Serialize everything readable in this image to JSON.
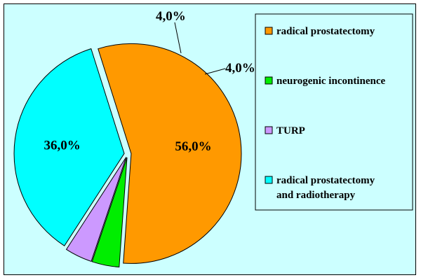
{
  "chart_data": {
    "type": "pie",
    "categories": [
      "radical prostatectomy",
      "neurogenic incontinence",
      "TURP",
      "radical prostatectomy and radiotherapy"
    ],
    "values": [
      56.0,
      4.0,
      4.0,
      36.0
    ],
    "value_labels": [
      "56,0%",
      "4,0%",
      "4,0%",
      "36,0%"
    ],
    "colors": [
      "#ff9900",
      "#00ee00",
      "#cc99ff",
      "#00ffff"
    ],
    "exploded": true,
    "legend_position": "right",
    "legend": {
      "items": [
        {
          "lines": [
            "radical prostatectomy"
          ]
        },
        {
          "lines": [
            "neurogenic incontinence"
          ]
        },
        {
          "lines": [
            "TURP"
          ]
        },
        {
          "lines": [
            "radical prostatectomy",
            "and radiotherapy"
          ]
        }
      ]
    },
    "background": "#ccffff"
  }
}
